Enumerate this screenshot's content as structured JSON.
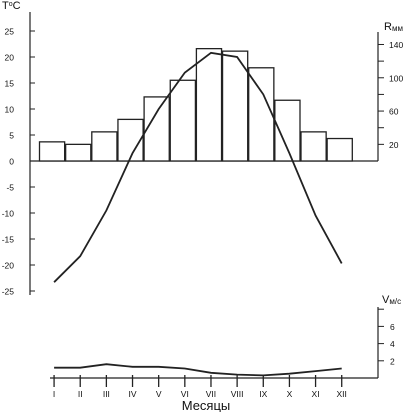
{
  "chart_data": {
    "type": "bar",
    "x_title": "Месяцы",
    "categories": [
      "I",
      "II",
      "III",
      "IV",
      "V",
      "VI",
      "VII",
      "VIII",
      "IX",
      "X",
      "XI",
      "XII"
    ],
    "temperature": {
      "label_main": "T",
      "label_sup": "o",
      "label_unit": "C",
      "ticks": [
        25,
        20,
        15,
        10,
        5,
        0,
        -5,
        -10,
        -15,
        -20,
        -25
      ],
      "ylim": [
        -25,
        25
      ],
      "values": [
        -23.3,
        -18.3,
        -9.5,
        1.5,
        10.0,
        17.0,
        20.8,
        20.0,
        12.8,
        1.5,
        -10.5,
        -19.7
      ]
    },
    "precipitation": {
      "label_main": "R",
      "label_sub": "мм",
      "ticks": [
        140,
        120,
        100,
        80,
        60,
        40,
        20
      ],
      "tick_labels": [
        "140",
        "100",
        "60",
        "20"
      ],
      "ylim": [
        0,
        155
      ],
      "values": [
        23,
        20,
        35,
        50,
        77,
        97,
        135,
        132,
        112,
        73,
        35,
        27
      ]
    },
    "wind": {
      "label_main": "V",
      "label_sub": "м/с",
      "ticks": [
        8,
        6,
        4,
        2
      ],
      "tick_labels": [
        "6",
        "4",
        "2"
      ],
      "ylim": [
        0,
        8
      ],
      "values": [
        1.2,
        1.2,
        1.6,
        1.3,
        1.3,
        1.1,
        0.6,
        0.4,
        0.3,
        0.5,
        0.8,
        1.1
      ]
    }
  }
}
